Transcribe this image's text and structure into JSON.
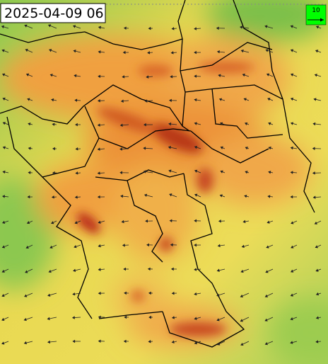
{
  "timestamp": "2025-04-09 06",
  "legend": {
    "label": "10"
  }
}
